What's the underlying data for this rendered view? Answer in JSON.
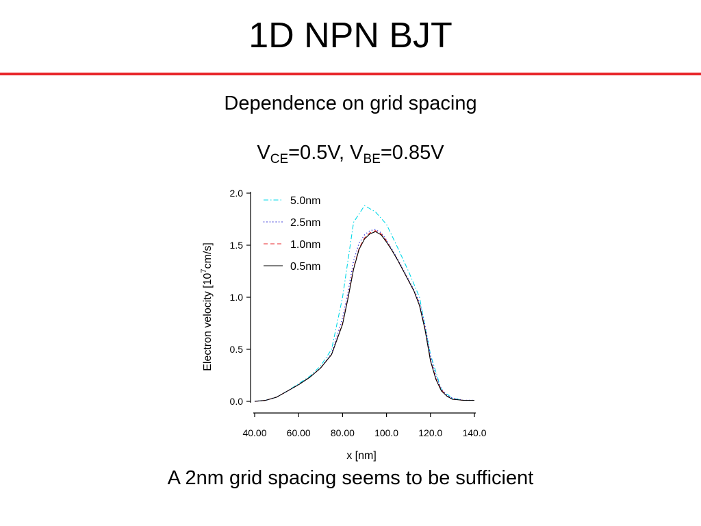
{
  "slide": {
    "title": "1D NPN BJT",
    "subtitle": "Dependence on grid spacing",
    "conditions": {
      "v1_symbol": "V",
      "v1_subscript": "CE",
      "v1_value": "=0.5V, ",
      "v2_symbol": "V",
      "v2_subscript": "BE",
      "v2_value": "=0.85V"
    },
    "conclusion": "A 2nm grid spacing seems to be sufficient",
    "rule_color": "#e8262a"
  },
  "chart_data": {
    "type": "line",
    "xlabel": "x  [nm]",
    "ylabel": "Electron velocity  [10",
    "ylabel_exponent": "7",
    "ylabel_unit": "cm/s]",
    "xlim": [
      40,
      140
    ],
    "ylim": [
      0,
      2.0
    ],
    "x_ticks": [
      40,
      60,
      80,
      100,
      120,
      140
    ],
    "x_tick_labels": [
      "40.00",
      "60.00",
      "80.00",
      "100.0",
      "120.0",
      "140.0"
    ],
    "y_ticks": [
      0,
      0.5,
      1.0,
      1.5,
      2.0
    ],
    "y_tick_labels": [
      "0.0",
      "0.5",
      "1.0",
      "1.5",
      "2.0"
    ],
    "grid": false,
    "legend_position": "top-left",
    "series": [
      {
        "name": "5.0nm",
        "color": "#00d8e8",
        "dash": "dashdot",
        "x": [
          40,
          45,
          50,
          55,
          60,
          65,
          70,
          75,
          80,
          85,
          90,
          95,
          100,
          105,
          110,
          115,
          120,
          125,
          130,
          135,
          140
        ],
        "y": [
          0.0,
          0.01,
          0.04,
          0.1,
          0.17,
          0.24,
          0.34,
          0.5,
          1.0,
          1.72,
          1.88,
          1.82,
          1.7,
          1.48,
          1.25,
          1.0,
          0.45,
          0.11,
          0.03,
          0.01,
          0.01
        ]
      },
      {
        "name": "2.5nm",
        "color": "#2b2bd6",
        "dash": "dotted",
        "x": [
          40,
          45,
          50,
          55,
          60,
          65,
          70,
          75,
          80,
          82.5,
          85,
          87.5,
          90,
          92.5,
          95,
          97.5,
          100,
          102.5,
          105,
          107.5,
          110,
          112.5,
          115,
          117.5,
          120,
          122.5,
          125,
          127.5,
          130,
          135,
          140
        ],
        "y": [
          0.0,
          0.01,
          0.04,
          0.1,
          0.16,
          0.23,
          0.32,
          0.46,
          0.8,
          1.05,
          1.35,
          1.52,
          1.6,
          1.64,
          1.65,
          1.62,
          1.55,
          1.46,
          1.37,
          1.27,
          1.17,
          1.07,
          0.95,
          0.73,
          0.44,
          0.24,
          0.12,
          0.06,
          0.03,
          0.01,
          0.01
        ]
      },
      {
        "name": "1.0nm",
        "color": "#e8262a",
        "dash": "dashed",
        "x": [
          40,
          45,
          50,
          55,
          60,
          65,
          70,
          75,
          80,
          82.5,
          85,
          87.5,
          90,
          92.5,
          95,
          97.5,
          100,
          102.5,
          105,
          107.5,
          110,
          112.5,
          115,
          117.5,
          120,
          122.5,
          125,
          127.5,
          130,
          135,
          140
        ],
        "y": [
          0.0,
          0.01,
          0.04,
          0.1,
          0.16,
          0.23,
          0.32,
          0.45,
          0.75,
          1.0,
          1.28,
          1.47,
          1.57,
          1.62,
          1.64,
          1.61,
          1.54,
          1.45,
          1.36,
          1.26,
          1.16,
          1.06,
          0.93,
          0.7,
          0.4,
          0.22,
          0.11,
          0.05,
          0.02,
          0.01,
          0.01
        ]
      },
      {
        "name": "0.5nm",
        "color": "#000000",
        "dash": "solid",
        "x": [
          40,
          45,
          50,
          55,
          60,
          65,
          70,
          75,
          80,
          82.5,
          85,
          87.5,
          90,
          92.5,
          95,
          97.5,
          100,
          102.5,
          105,
          107.5,
          110,
          112.5,
          115,
          117.5,
          120,
          122.5,
          125,
          127.5,
          130,
          135,
          140
        ],
        "y": [
          0.0,
          0.01,
          0.04,
          0.1,
          0.16,
          0.23,
          0.32,
          0.45,
          0.74,
          0.99,
          1.27,
          1.46,
          1.56,
          1.61,
          1.63,
          1.6,
          1.53,
          1.45,
          1.36,
          1.26,
          1.16,
          1.06,
          0.92,
          0.69,
          0.39,
          0.21,
          0.1,
          0.05,
          0.02,
          0.01,
          0.01
        ]
      }
    ]
  }
}
